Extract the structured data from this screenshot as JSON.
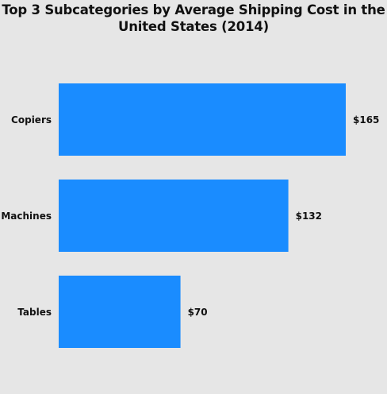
{
  "chart_data": {
    "type": "bar",
    "orientation": "horizontal",
    "title": "Top 3 Subcategories by Average Shipping Cost in the United States (2014)",
    "title_lines": [
      "Top 3 Subcategories by Average Shipping Cost in the",
      "United States (2014)"
    ],
    "categories": [
      "Copiers",
      "Machines",
      "Tables"
    ],
    "values": [
      165,
      132,
      70
    ],
    "value_labels": [
      "$165",
      "$132",
      "$70"
    ],
    "xlim": [
      0,
      165
    ],
    "grid": false,
    "legend": "none",
    "bar_color": "#1a8cff",
    "background_color": "#e6e6e6"
  }
}
